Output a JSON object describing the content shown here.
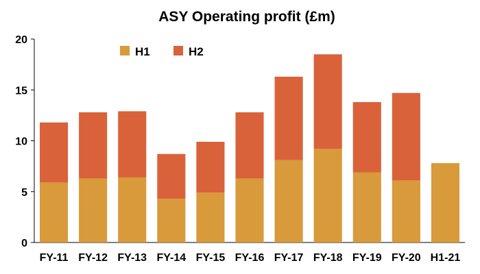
{
  "chart_data": {
    "type": "bar",
    "stacked": true,
    "title": "ASY Operating profit (£m)",
    "xlabel": "",
    "ylabel": "",
    "categories": [
      "FY-11",
      "FY-12",
      "FY-13",
      "FY-14",
      "FY-15",
      "FY-16",
      "FY-17",
      "FY-18",
      "FY-19",
      "FY-20",
      "H1-21"
    ],
    "series": [
      {
        "name": "H1",
        "color": "#D89A3A",
        "values": [
          5.9,
          6.3,
          6.4,
          4.3,
          4.9,
          6.3,
          8.1,
          9.2,
          6.9,
          6.1,
          7.8
        ]
      },
      {
        "name": "H2",
        "color": "#D9623A",
        "values": [
          5.9,
          6.5,
          6.5,
          4.4,
          5.0,
          6.5,
          8.2,
          9.3,
          6.9,
          8.6,
          0
        ]
      }
    ],
    "ylim": [
      0,
      20
    ],
    "yticks": [
      0,
      5,
      10,
      15,
      20
    ],
    "grid": false,
    "legend": "top-left"
  }
}
